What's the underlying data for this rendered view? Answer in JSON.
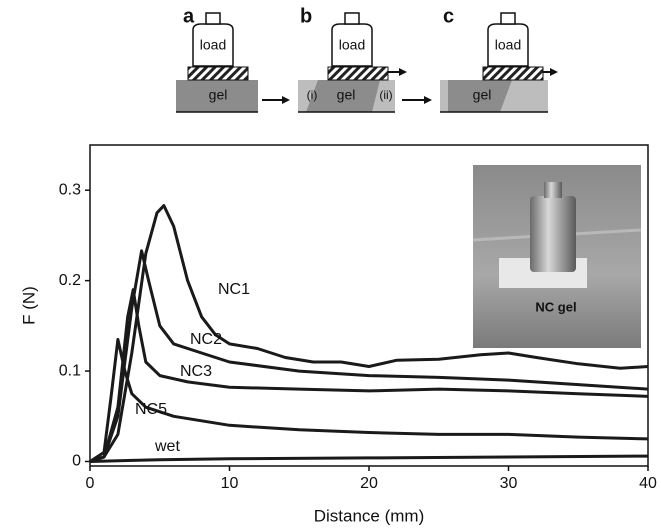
{
  "schematic": {
    "panels": [
      {
        "letter": "a",
        "load": "load",
        "gel": "gel"
      },
      {
        "letter": "b",
        "load": "load",
        "gel": "gel",
        "left": "(i)",
        "right": "(ii)"
      },
      {
        "letter": "c",
        "load": "load",
        "gel": "gel"
      }
    ]
  },
  "inset": {
    "label": "NC gel"
  },
  "chart_data": {
    "type": "line",
    "x_label": "Distance (mm)",
    "y_label": "F (N)",
    "xlim": [
      0,
      40
    ],
    "ylim": [
      -0.005,
      0.35
    ],
    "xticks": [
      0,
      10,
      20,
      30,
      40
    ],
    "yticks": [
      0,
      0.1,
      0.2,
      0.3
    ],
    "grid": false,
    "series": [
      {
        "name": "NC1",
        "color": "#1a1a1a",
        "x": [
          0,
          1,
          2,
          3,
          4,
          4.8,
          5.3,
          6,
          7,
          8,
          9,
          10,
          12,
          14,
          16,
          18,
          20,
          22,
          25,
          28,
          30,
          32,
          35,
          38,
          40
        ],
        "values": [
          0,
          0.005,
          0.03,
          0.12,
          0.23,
          0.275,
          0.283,
          0.26,
          0.2,
          0.16,
          0.14,
          0.13,
          0.125,
          0.115,
          0.11,
          0.11,
          0.105,
          0.112,
          0.113,
          0.118,
          0.12,
          0.115,
          0.108,
          0.103,
          0.105
        ]
      },
      {
        "name": "NC2",
        "color": "#1a1a1a",
        "x": [
          0,
          1,
          2,
          3,
          3.7,
          4.2,
          5,
          6,
          8,
          10,
          15,
          20,
          25,
          30,
          35,
          40
        ],
        "values": [
          0,
          0.005,
          0.05,
          0.17,
          0.233,
          0.2,
          0.15,
          0.13,
          0.12,
          0.11,
          0.1,
          0.095,
          0.093,
          0.09,
          0.085,
          0.08
        ]
      },
      {
        "name": "NC3",
        "color": "#1a1a1a",
        "x": [
          0,
          1,
          2,
          2.7,
          3.1,
          3.5,
          4,
          5,
          7,
          10,
          15,
          20,
          25,
          30,
          35,
          40
        ],
        "values": [
          0,
          0.005,
          0.06,
          0.16,
          0.19,
          0.15,
          0.11,
          0.095,
          0.088,
          0.082,
          0.08,
          0.078,
          0.08,
          0.078,
          0.075,
          0.072
        ]
      },
      {
        "name": "NC5",
        "color": "#1a1a1a",
        "x": [
          0,
          1,
          1.5,
          2,
          2.5,
          3,
          4,
          6,
          8,
          10,
          15,
          20,
          25,
          30,
          35,
          40
        ],
        "values": [
          0,
          0.01,
          0.07,
          0.135,
          0.1,
          0.075,
          0.06,
          0.05,
          0.045,
          0.04,
          0.035,
          0.032,
          0.03,
          0.03,
          0.027,
          0.025
        ]
      },
      {
        "name": "wet",
        "color": "#1a1a1a",
        "x": [
          0,
          5,
          10,
          20,
          30,
          40
        ],
        "values": [
          0,
          0.002,
          0.003,
          0.004,
          0.005,
          0.006
        ]
      }
    ]
  }
}
